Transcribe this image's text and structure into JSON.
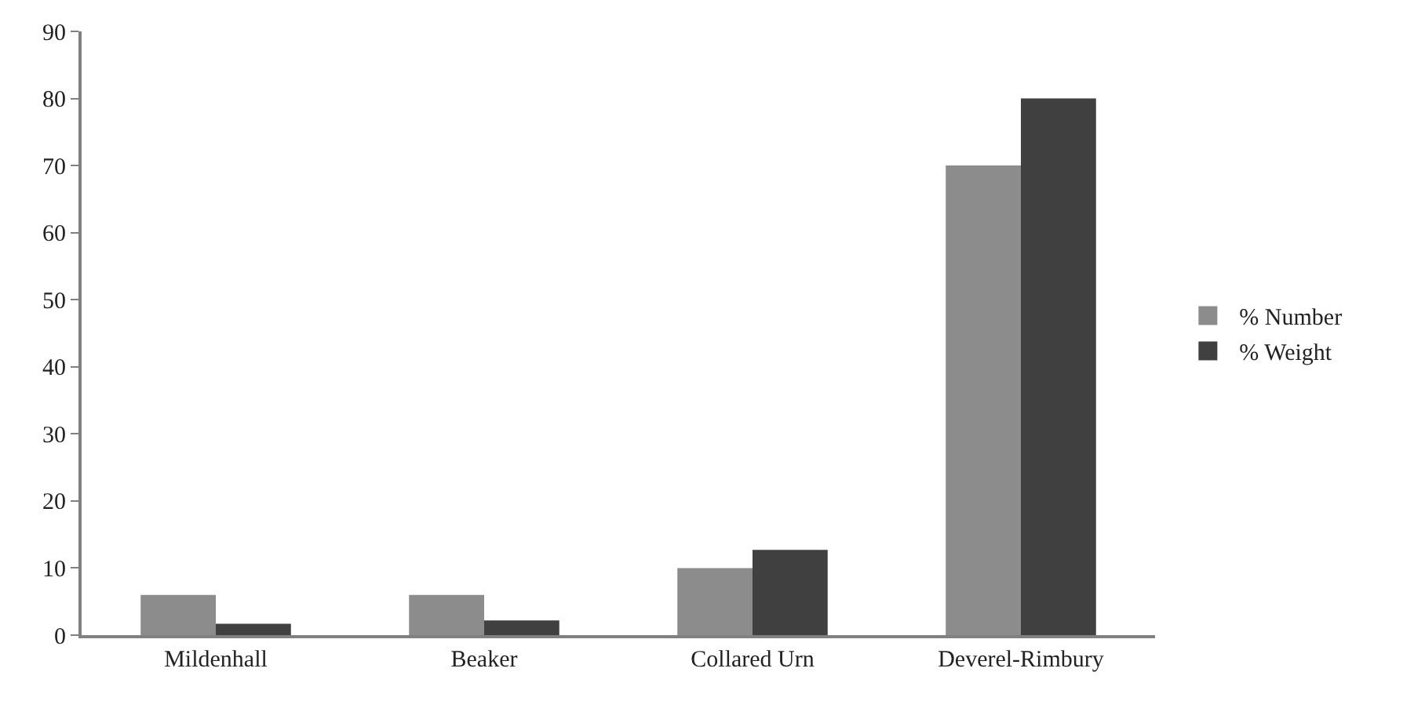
{
  "chart_data": {
    "type": "bar",
    "categories": [
      "Mildenhall",
      "Beaker",
      "Collared Urn",
      "Deverel-Rimbury"
    ],
    "series": [
      {
        "name": "% Number",
        "color": "#8c8c8c",
        "values": [
          6,
          6,
          10,
          70
        ]
      },
      {
        "name": "% Weight",
        "color": "#404040",
        "values": [
          1.7,
          2.2,
          12.7,
          80
        ]
      }
    ],
    "ylim": [
      0,
      90
    ],
    "yticks": [
      0,
      10,
      20,
      30,
      40,
      50,
      60,
      70,
      80,
      90
    ],
    "grid": false,
    "legend": "right"
  }
}
